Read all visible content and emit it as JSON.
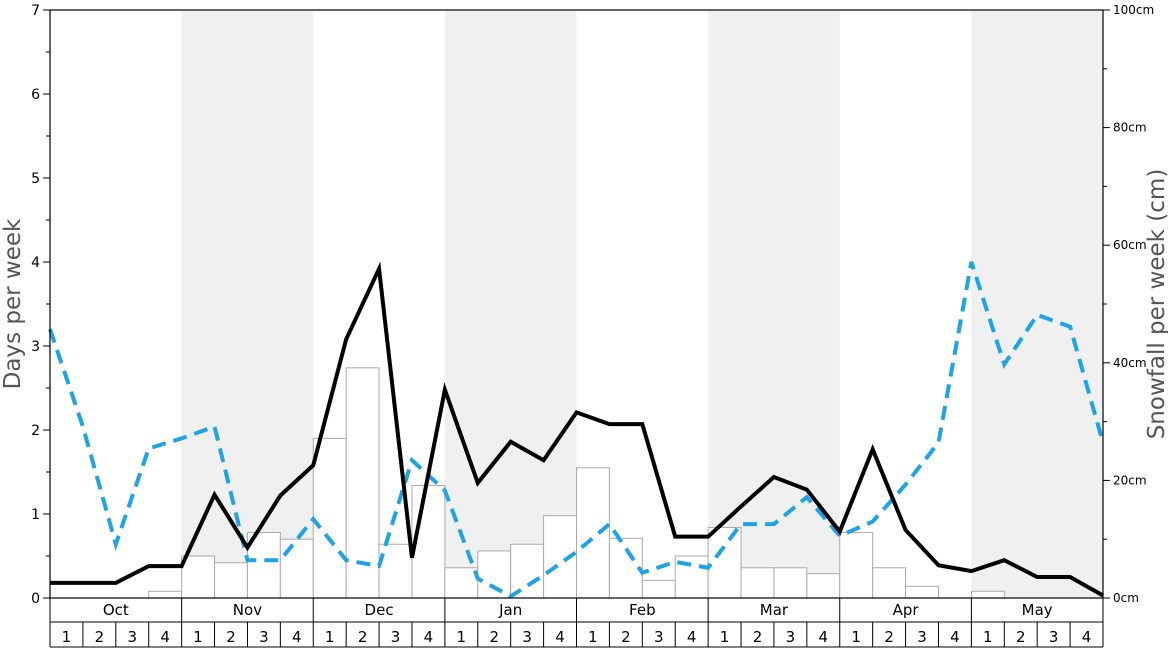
{
  "chart_data": {
    "type": "bar+line",
    "title": "",
    "ylabel_left": "Days per week",
    "ylabel_right": "Snowfall per week (cm)",
    "y_left_range": [
      0,
      7
    ],
    "y_left_ticks": [
      "0",
      "1",
      "2",
      "3",
      "4",
      "5",
      "6",
      "7"
    ],
    "y_right_range": [
      0,
      100
    ],
    "y_right_ticks": [
      "0cm",
      "20cm",
      "40cm",
      "60cm",
      "80cm",
      "100cm"
    ],
    "months": [
      "Oct",
      "Nov",
      "Dec",
      "Jan",
      "Feb",
      "Mar",
      "Apr",
      "May"
    ],
    "weeks_labels": [
      "1",
      "2",
      "3",
      "4"
    ],
    "shaded_months": [
      false,
      true,
      false,
      true,
      false,
      true,
      false,
      true
    ],
    "colors": {
      "shade": "#f0f0f0",
      "bar_fill": "#ffffff",
      "bar_stroke": "#aaaaaa",
      "solid_line": "#000000",
      "dashed_line": "#1fa3e6",
      "axis": "#000000"
    },
    "series": [
      {
        "kind": "bar",
        "axis": "left",
        "values": [
          0,
          0,
          0,
          0.08,
          0.5,
          0.42,
          0.78,
          0.7,
          1.9,
          2.74,
          0.64,
          1.34,
          0.36,
          0.56,
          0.64,
          0.98,
          1.55,
          0.71,
          0.21,
          0.5,
          0.84,
          0.36,
          0.36,
          0.29,
          0.78,
          0.36,
          0.14,
          0,
          0.08,
          0,
          0,
          0
        ]
      },
      {
        "kind": "line",
        "style": "solid",
        "axis": "left",
        "values": [
          0.18,
          0.18,
          0.18,
          0.38,
          0.38,
          1.23,
          0.6,
          1.22,
          1.58,
          3.08,
          3.92,
          0.48,
          2.48,
          1.37,
          1.86,
          1.64,
          2.21,
          2.07,
          2.07,
          0.73,
          0.73,
          1.09,
          1.44,
          1.29,
          0.79,
          1.77,
          0.81,
          0.39,
          0.32,
          0.45,
          0.25,
          0.25,
          0.03
        ]
      },
      {
        "kind": "line",
        "style": "dashed",
        "axis": "left",
        "values": [
          3.2,
          2.04,
          0.64,
          1.78,
          1.9,
          2.04,
          0.45,
          0.45,
          0.94,
          0.45,
          0.38,
          1.64,
          1.28,
          0.23,
          0.02,
          0.27,
          0.55,
          0.88,
          0.3,
          0.43,
          0.36,
          0.88,
          0.88,
          1.2,
          0.74,
          0.91,
          1.35,
          1.85,
          4.0,
          2.78,
          3.37,
          3.23,
          1.85
        ]
      }
    ]
  }
}
